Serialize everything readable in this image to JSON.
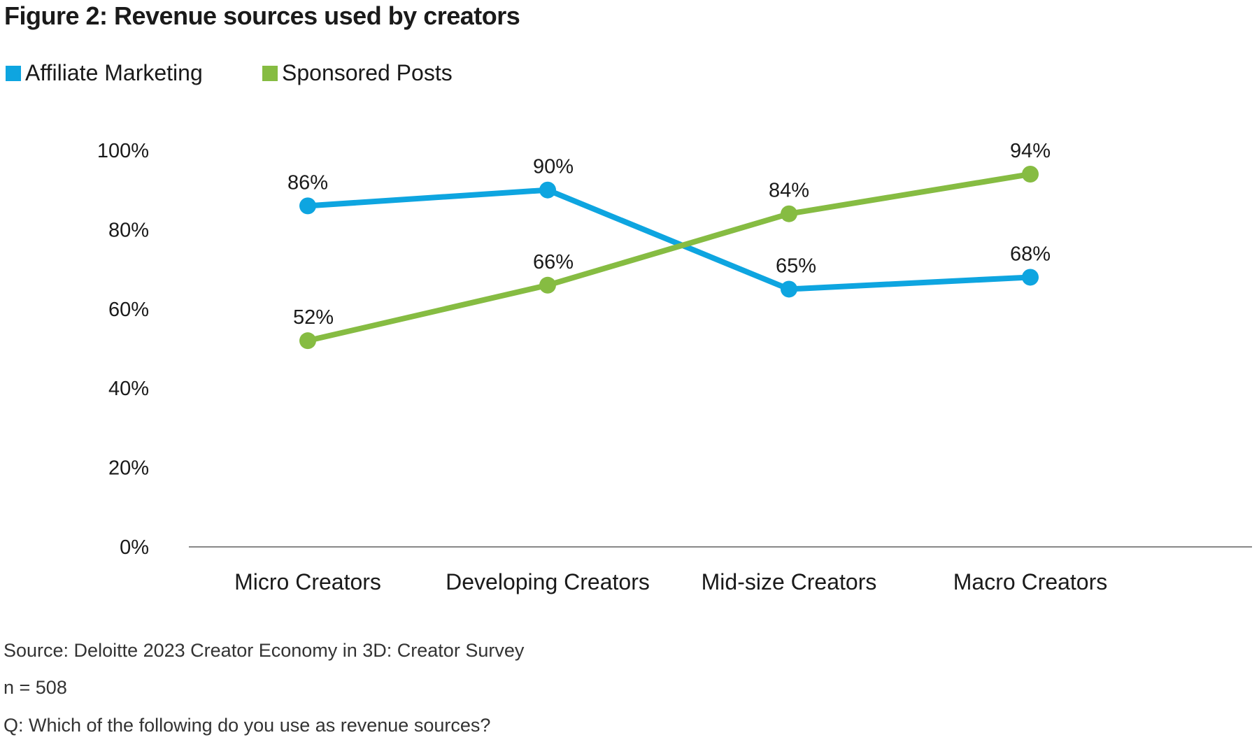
{
  "chart_data": {
    "type": "line",
    "title": "Figure 2: Revenue sources used by creators",
    "categories": [
      "Micro Creators",
      "Developing Creators",
      "Mid-size Creators",
      "Macro Creators"
    ],
    "series": [
      {
        "name": "Affiliate Marketing",
        "color": "#0EA5E0",
        "values": [
          86,
          90,
          65,
          68
        ],
        "labels": [
          "86%",
          "90%",
          "65%",
          "68%"
        ]
      },
      {
        "name": "Sponsored Posts",
        "color": "#86BC42",
        "values": [
          52,
          66,
          84,
          94
        ],
        "labels": [
          "52%",
          "66%",
          "84%",
          "94%"
        ]
      }
    ],
    "yticks": [
      0,
      20,
      40,
      60,
      80,
      100
    ],
    "ytick_labels": [
      "0%",
      "20%",
      "40%",
      "60%",
      "80%",
      "100%"
    ],
    "ylim": [
      0,
      100
    ],
    "xlabel": "",
    "ylabel": "",
    "grid": false,
    "legend": "top-left"
  },
  "footer": {
    "source": "Source: Deloitte 2023 Creator Economy in 3D: Creator Survey",
    "n": "n = 508",
    "question": "Q: Which of the following do you use as revenue sources?"
  }
}
